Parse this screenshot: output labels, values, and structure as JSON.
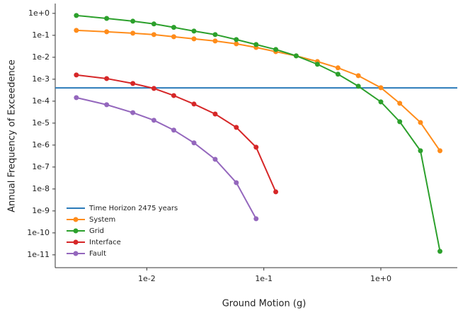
{
  "chart_data": {
    "type": "line",
    "xlabel": "Ground Motion (g)",
    "ylabel": "Annual Frequency of Exceedence",
    "xscale": "log",
    "yscale": "log",
    "x": [
      0.0025,
      0.00454,
      0.0076,
      0.0115,
      0.017,
      0.0253,
      0.0384,
      0.0582,
      0.0859,
      0.1265,
      0.189,
      0.287,
      0.43,
      0.642,
      1.0,
      1.45,
      2.18,
      3.2
    ],
    "hline": {
      "name": "Time Horizon 2475 years",
      "value": 0.000404,
      "color": "#2b7bb9"
    },
    "series": [
      {
        "name": "System",
        "color": "#ff8c1a",
        "values": [
          0.168,
          0.145,
          0.125,
          0.108,
          0.086,
          0.069,
          0.055,
          0.041,
          0.028,
          0.018,
          0.0116,
          0.0064,
          0.0033,
          0.00145,
          0.00041,
          8e-05,
          1.07e-05,
          5.5e-07
        ]
      },
      {
        "name": "Grid",
        "color": "#2ca02c",
        "values": [
          0.8,
          0.59,
          0.44,
          0.33,
          0.23,
          0.156,
          0.108,
          0.064,
          0.038,
          0.0226,
          0.0116,
          0.0048,
          0.0017,
          0.00048,
          9.3e-05,
          1.16e-05,
          5.5e-07,
          1.45e-11
        ]
      },
      {
        "name": "Interface",
        "color": "#d62728",
        "values": [
          0.00156,
          0.00107,
          0.00064,
          0.00038,
          0.00018,
          7.4e-05,
          2.6e-05,
          6.4e-06,
          8e-07,
          7.4e-09,
          null,
          null,
          null,
          null,
          null,
          null,
          null,
          null
        ]
      },
      {
        "name": "Fault",
        "color": "#9467bd",
        "values": [
          0.000145,
          6.9e-05,
          3e-05,
          1.35e-05,
          4.8e-06,
          1.26e-06,
          2.25e-07,
          1.94e-08,
          4.4e-10,
          null,
          null,
          null,
          null,
          null,
          null,
          null,
          null,
          null
        ]
      }
    ],
    "xlim": [
      0.00165,
      4.5
    ],
    "ylim": [
      2.6e-12,
      2.8
    ],
    "xticks": [
      {
        "value": 0.01,
        "label": "1e-2"
      },
      {
        "value": 0.1,
        "label": "1e-1"
      },
      {
        "value": 1,
        "label": "1e+0"
      }
    ],
    "yticks": [
      {
        "value": 1,
        "label": "1e+0"
      },
      {
        "value": 0.1,
        "label": "1e-1"
      },
      {
        "value": 0.01,
        "label": "1e-2"
      },
      {
        "value": 0.001,
        "label": "1e-3"
      },
      {
        "value": 0.0001,
        "label": "1e-4"
      },
      {
        "value": 1e-05,
        "label": "1e-5"
      },
      {
        "value": 1e-06,
        "label": "1e-6"
      },
      {
        "value": 1e-07,
        "label": "1e-7"
      },
      {
        "value": 1e-08,
        "label": "1e-8"
      },
      {
        "value": 1e-09,
        "label": "1e-9"
      },
      {
        "value": 1e-10,
        "label": "1e-10"
      },
      {
        "value": 1e-11,
        "label": "1e-11"
      }
    ],
    "grid": false,
    "legend": "lower left"
  }
}
